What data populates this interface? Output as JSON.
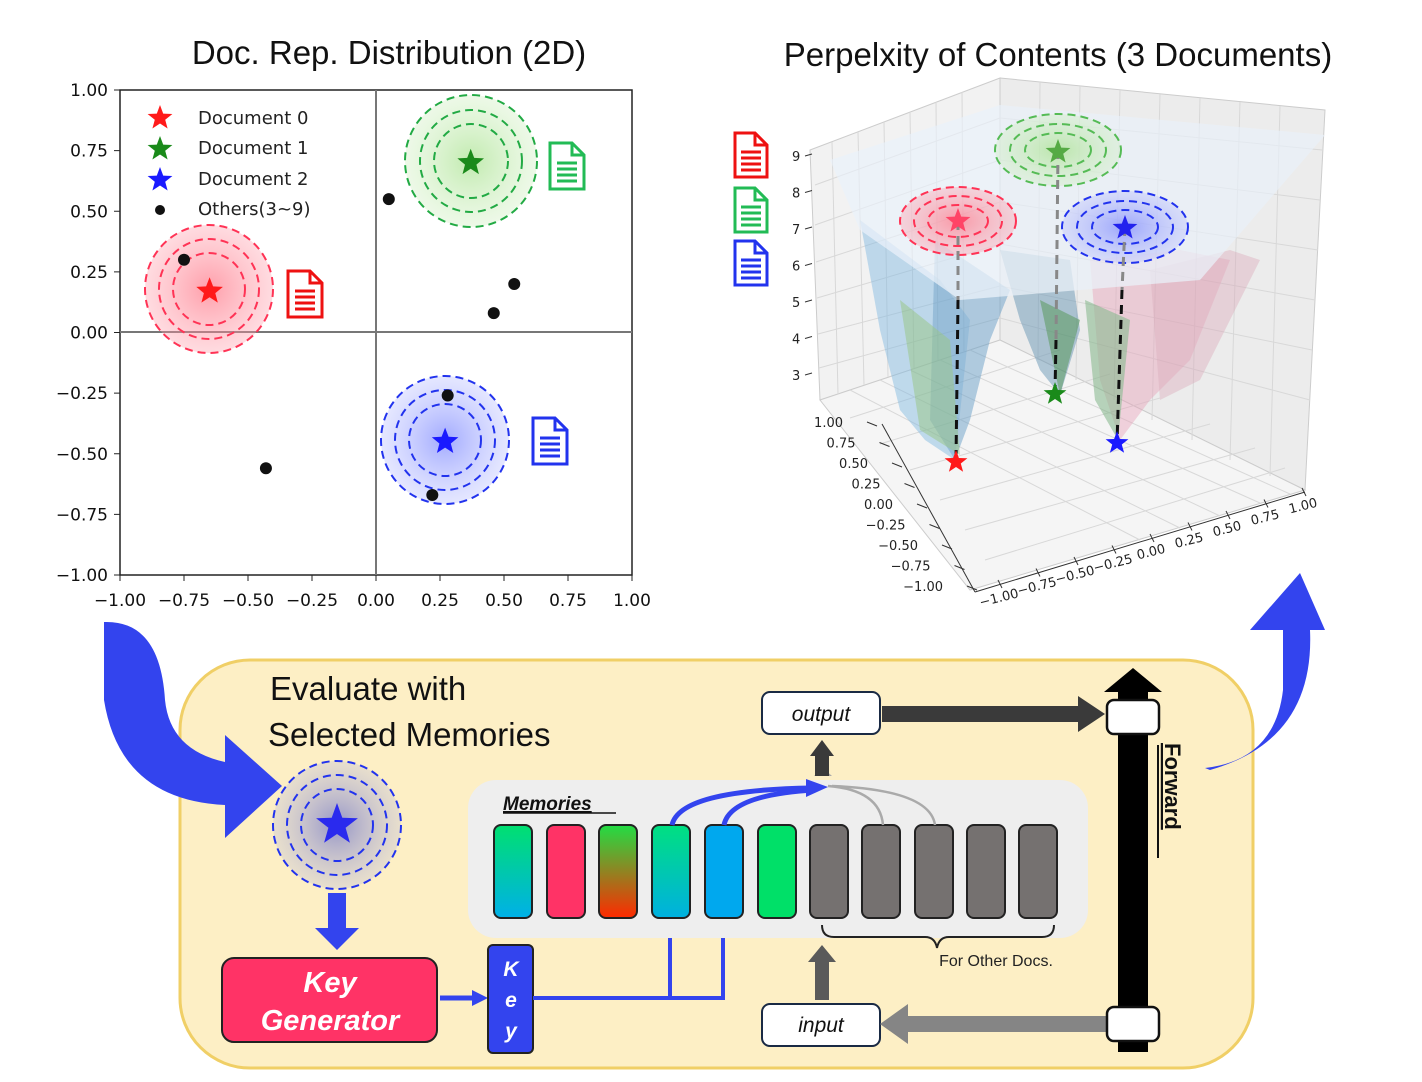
{
  "left_chart": {
    "title": "Doc. Rep. Distribution (2D)",
    "x_ticks": [
      "−1.00",
      "−0.75",
      "−0.50",
      "−0.25",
      "0.00",
      "0.25",
      "0.50",
      "0.75",
      "1.00"
    ],
    "y_ticks": [
      "1.00",
      "0.75",
      "0.50",
      "0.25",
      "0.00",
      "−0.25",
      "−0.50",
      "−0.75",
      "−1.00"
    ],
    "legend": [
      "Document 0",
      "Document 1",
      "Document 2",
      "Others(3~9)"
    ]
  },
  "right_chart": {
    "title": "Perpelxity of Contents (3 Documents)",
    "z_ticks": [
      "9",
      "8",
      "7",
      "6",
      "5",
      "4",
      "3"
    ],
    "y_ticks": [
      "1.00",
      "0.75",
      "0.50",
      "0.25",
      "0.00",
      "−0.25",
      "−0.50",
      "−0.75",
      "−1.00"
    ],
    "x_ticks": [
      "−1.00",
      "−0.75",
      "−0.50",
      "−0.25",
      "0.00",
      "0.25",
      "0.50",
      "0.75",
      "1.00"
    ]
  },
  "panel": {
    "heading_line1": "Evaluate with",
    "heading_line2": "Selected Memories",
    "key_gen_line1": "Key",
    "key_gen_line2": "Generator",
    "key_chars": [
      "K",
      "e",
      "y"
    ],
    "memories_label": "Memories",
    "other_docs_label": "For Other Docs.",
    "output_label": "output",
    "input_label": "input",
    "forward_label": "Forward"
  },
  "colors": {
    "doc0": "#ff1a1a",
    "doc1": "#1a8a1a",
    "doc2": "#1a1aff",
    "panel_bg": "#fdefc5",
    "key_gen": "#ff3366",
    "arrow_blue": "#3344ee"
  },
  "chart_data": [
    {
      "type": "scatter",
      "title": "Doc. Rep. Distribution (2D)",
      "xlim": [
        -1.0,
        1.0
      ],
      "ylim": [
        -1.0,
        1.0
      ],
      "legend_position": "top-left",
      "series": [
        {
          "name": "Document 0",
          "points": [
            [
              -0.65,
              0.17
            ]
          ]
        },
        {
          "name": "Document 1",
          "points": [
            [
              0.37,
              0.7
            ]
          ]
        },
        {
          "name": "Document 2",
          "points": [
            [
              0.27,
              -0.45
            ]
          ]
        },
        {
          "name": "Others(3~9)",
          "points": [
            [
              -0.75,
              0.3
            ],
            [
              0.05,
              0.55
            ],
            [
              0.54,
              0.2
            ],
            [
              0.46,
              0.08
            ],
            [
              0.28,
              -0.26
            ],
            [
              -0.43,
              -0.56
            ],
            [
              0.22,
              -0.67
            ]
          ]
        }
      ]
    },
    {
      "type": "surface",
      "title": "Perpelxity of Contents (3 Documents)",
      "zlim": [
        2.5,
        9.5
      ],
      "xlim": [
        -1.0,
        1.0
      ],
      "ylim": [
        -1.0,
        1.0
      ]
    }
  ]
}
